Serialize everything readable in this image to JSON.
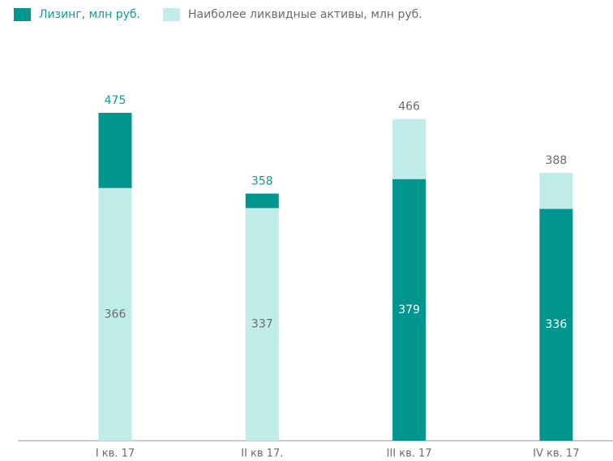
{
  "chart_data": {
    "type": "stacked_bar",
    "categories": [
      "I кв. 17",
      "II кв 17.",
      "III кв. 17",
      "IV кв. 17"
    ],
    "series": [
      {
        "name": "Лизинг, млн руб.",
        "color": "#009690",
        "values": [
          109,
          21,
          379,
          336
        ]
      },
      {
        "name": "Наиболее ликвидные активы, млн руб.",
        "color": "#c0ecea",
        "values": [
          366,
          337,
          87,
          52
        ]
      }
    ],
    "totals": [
      475,
      358,
      466,
      388
    ],
    "legend": "top-left"
  }
}
